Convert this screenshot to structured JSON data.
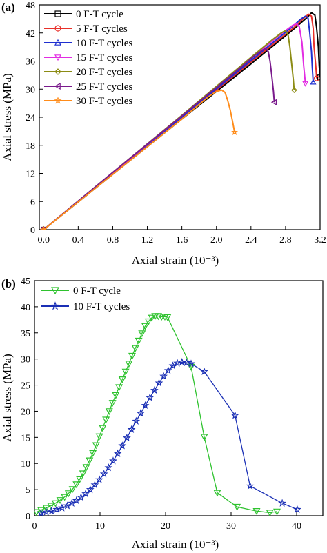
{
  "chart_data": [
    {
      "panel_label": "(a)",
      "type": "line",
      "xlabel": "Axial strain (10⁻³)",
      "ylabel": "Axial stress (MPa)",
      "xlim": [
        -0.05,
        3.2
      ],
      "ylim": [
        0,
        48
      ],
      "x_ticks": [
        0.0,
        0.4,
        0.8,
        1.2,
        1.6,
        2.0,
        2.4,
        2.8,
        3.2
      ],
      "x_tick_labels": [
        "0.0",
        "0.4",
        "0.8",
        "1.2",
        "1.6",
        "2.0",
        "2.4",
        "2.8",
        "3.2"
      ],
      "y_ticks": [
        0,
        6,
        12,
        18,
        24,
        30,
        36,
        42,
        48
      ],
      "y_tick_labels": [
        "0",
        "6",
        "12",
        "18",
        "24",
        "30",
        "36",
        "42",
        "48"
      ],
      "legend_position": "top-left",
      "series": [
        {
          "name": "0 F-T cycle",
          "color": "#000000",
          "marker": "square",
          "x": [
            0.0,
            0.8,
            1.6,
            2.4,
            2.9,
            3.05,
            3.1,
            3.14,
            3.16,
            3.18,
            3.19,
            3.2
          ],
          "y": [
            0,
            11.8,
            23.6,
            35.4,
            42.9,
            45.3,
            46.3,
            45.8,
            43,
            39,
            35,
            32.5
          ]
        },
        {
          "name": "5 F-T cycles",
          "color": "#e8302a",
          "marker": "circle",
          "x": [
            0.0,
            0.8,
            1.6,
            2.4,
            2.9,
            3.03,
            3.07,
            3.1,
            3.12,
            3.13,
            3.15,
            3.16
          ],
          "y": [
            0,
            11.9,
            23.8,
            35.8,
            43.2,
            45.5,
            46.0,
            45.6,
            43,
            39,
            35,
            32.3
          ]
        },
        {
          "name": "10 F-T cycles",
          "color": "#1f2fd0",
          "marker": "triangle-up",
          "x": [
            0.0,
            0.8,
            1.6,
            2.4,
            2.85,
            2.98,
            3.03,
            3.06,
            3.08,
            3.1,
            3.11,
            3.12
          ],
          "y": [
            0,
            12.0,
            24.0,
            36.1,
            42.9,
            45.0,
            45.6,
            45.2,
            42,
            38,
            34.5,
            31.5
          ]
        },
        {
          "name": "15 F-T cycles",
          "color": "#e22ce2",
          "marker": "triangle-down",
          "x": [
            0.0,
            0.8,
            1.6,
            2.4,
            2.75,
            2.88,
            2.93,
            2.96,
            2.99,
            3.01,
            3.03
          ],
          "y": [
            0,
            12.1,
            24.3,
            36.6,
            41.8,
            43.6,
            44.0,
            43.3,
            40,
            35,
            31.2
          ]
        },
        {
          "name": "20 F-T cycles",
          "color": "#8c8c14",
          "marker": "diamond",
          "x": [
            0.0,
            0.8,
            1.6,
            2.4,
            2.65,
            2.75,
            2.8,
            2.83,
            2.85,
            2.87,
            2.89,
            2.9
          ],
          "y": [
            0,
            12.2,
            24.4,
            36.8,
            40.6,
            42.0,
            42.5,
            41.5,
            39,
            35.5,
            32,
            29.8
          ]
        },
        {
          "name": "25 F-T cycles",
          "color": "#7a1a8c",
          "marker": "triangle-left",
          "x": [
            0.0,
            0.8,
            1.6,
            2.2,
            2.45,
            2.53,
            2.57,
            2.6,
            2.62,
            2.64,
            2.66,
            2.67
          ],
          "y": [
            0,
            12.2,
            24.3,
            33.4,
            37.3,
            38.3,
            38.7,
            38.0,
            36,
            33,
            29.5,
            27.2
          ]
        },
        {
          "name": "30 F-T cycles",
          "color": "#ff8c1a",
          "marker": "star",
          "x": [
            0.0,
            0.4,
            0.8,
            1.2,
            1.6,
            1.9,
            2.0,
            2.06,
            2.1,
            2.13,
            2.16,
            2.19,
            2.21
          ],
          "y": [
            0,
            5.9,
            11.8,
            17.7,
            23.6,
            28.3,
            29.5,
            29.8,
            29.3,
            27.6,
            25.5,
            22.8,
            20.8
          ]
        }
      ]
    },
    {
      "panel_label": "(b)",
      "type": "line",
      "xlabel": "Axial strain (10⁻³)",
      "ylabel": "Axial stress (MPa)",
      "xlim": [
        0,
        44
      ],
      "ylim": [
        0,
        45
      ],
      "x_ticks": [
        0,
        10,
        20,
        30,
        40
      ],
      "x_tick_labels": [
        "0",
        "10",
        "20",
        "30",
        "40"
      ],
      "y_ticks": [
        0,
        5,
        10,
        15,
        20,
        25,
        30,
        35,
        40,
        45
      ],
      "y_tick_labels": [
        "0",
        "5",
        "10",
        "15",
        "20",
        "25",
        "30",
        "35",
        "40",
        "45"
      ],
      "legend_position": "top-left",
      "series": [
        {
          "name": "0 F-T cycle",
          "color": "#2ec22e",
          "marker": "triangle-down",
          "x": [
            0.3,
            1.0,
            1.8,
            2.5,
            3.2,
            3.9,
            4.6,
            5.2,
            5.8,
            6.4,
            6.9,
            7.4,
            7.9,
            8.4,
            8.9,
            9.4,
            9.9,
            10.4,
            10.9,
            11.4,
            11.9,
            12.4,
            12.9,
            13.4,
            13.9,
            14.4,
            14.9,
            15.4,
            15.9,
            16.4,
            16.9,
            17.4,
            17.9,
            18.4,
            18.9,
            19.4,
            19.9,
            20.3,
            23.9,
            25.9,
            27.9,
            30.9,
            33.9,
            35.9,
            37.0
          ],
          "y": [
            0.7,
            1.1,
            1.5,
            1.9,
            2.4,
            3.0,
            3.6,
            4.3,
            5.1,
            6.0,
            7.0,
            8.1,
            9.3,
            10.6,
            12.0,
            13.5,
            15.2,
            16.8,
            18.4,
            20.0,
            21.6,
            23.1,
            24.6,
            26.1,
            27.6,
            29.1,
            30.6,
            32.1,
            33.5,
            34.9,
            36.3,
            37.2,
            37.9,
            38.2,
            38.2,
            38.1,
            38.1,
            38.0,
            28.5,
            15.1,
            4.4,
            1.7,
            0.9,
            0.6,
            0.8
          ]
        },
        {
          "name": "10 F-T cycles",
          "color": "#1a2fb5",
          "marker": "star",
          "x": [
            1.0,
            1.8,
            2.6,
            3.4,
            4.2,
            5.0,
            5.7,
            6.4,
            7.1,
            7.8,
            8.5,
            9.2,
            9.9,
            10.6,
            11.3,
            12.0,
            12.7,
            13.4,
            14.1,
            14.8,
            15.5,
            16.2,
            16.9,
            17.6,
            18.3,
            19.0,
            19.7,
            20.4,
            21.1,
            21.8,
            22.5,
            23.2,
            23.9,
            25.9,
            30.6,
            32.9,
            37.8,
            40.1
          ],
          "y": [
            0.5,
            0.7,
            0.9,
            1.2,
            1.5,
            1.9,
            2.4,
            2.9,
            3.5,
            4.2,
            5.0,
            5.9,
            6.9,
            8.0,
            9.2,
            10.5,
            11.9,
            13.4,
            14.9,
            16.5,
            18.1,
            19.6,
            21.1,
            22.6,
            24.0,
            25.4,
            26.7,
            27.8,
            28.7,
            29.2,
            29.4,
            29.3,
            29.1,
            27.6,
            19.2,
            5.7,
            2.4,
            1.2
          ]
        }
      ]
    }
  ]
}
